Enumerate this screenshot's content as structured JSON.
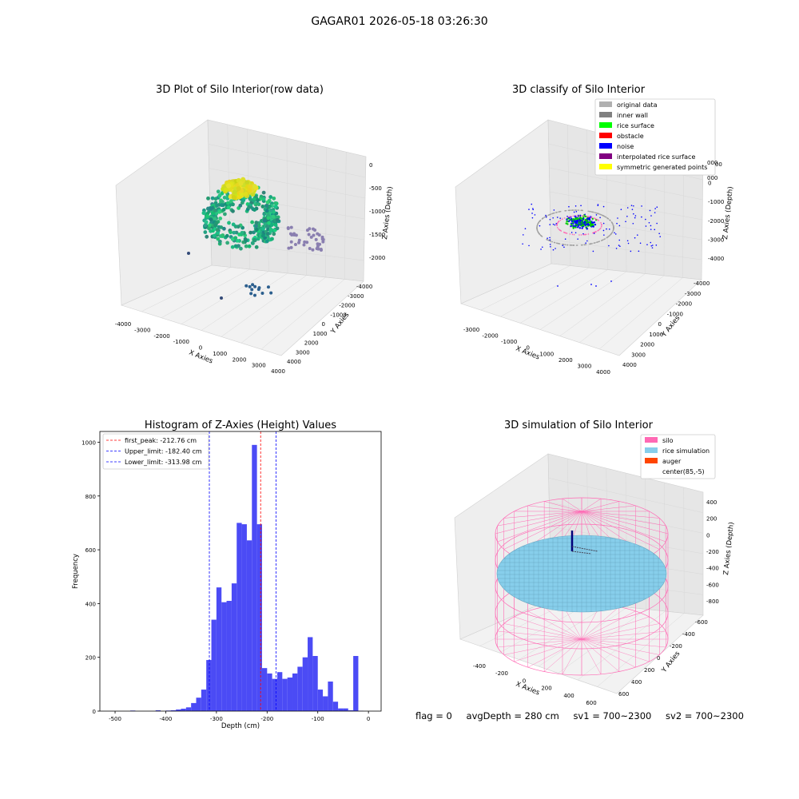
{
  "suptitle": "GAGAR01 2026-05-18 03:26:30",
  "colors": {
    "hist_bar": "#4b4bf5",
    "peak_line": "#ff0000",
    "limit_line": "#0000ff",
    "silo": "#ff69b4",
    "rice": "#87ceeb",
    "auger": "#ff4500"
  },
  "panel1": {
    "title": "3D Plot of Silo Interior(row data)",
    "xlabel": "X Axies",
    "ylabel": "Y Axies",
    "zlabel": "Z Axies (Depth)",
    "xticks": [
      "-4000",
      "-3000",
      "-2000",
      "-1000",
      "0",
      "1000",
      "2000",
      "3000",
      "4000"
    ],
    "yticks": [
      "4000",
      "3000",
      "2000",
      "1000",
      "0",
      "-1000",
      "-2000",
      "-3000",
      "-4000"
    ],
    "zticks": [
      "0",
      "-500",
      "-1000",
      "-1500",
      "-2000"
    ],
    "colormap": "viridis"
  },
  "panel2": {
    "title": "3D classify of Silo Interior",
    "xlabel": "X Axies",
    "ylabel": "Y Axies",
    "zlabel": "Z Axies (Depth)",
    "xticks": [
      "-3000",
      "-2000",
      "-1000",
      "0",
      "1000",
      "2000",
      "3000",
      "4000"
    ],
    "yticks": [
      "4000",
      "3000",
      "2000",
      "1000",
      "0",
      "-1000",
      "-2000",
      "-3000",
      "-4000"
    ],
    "zticks": [
      "1000",
      "0",
      "-1000",
      "-2000",
      "-3000",
      "-4000"
    ],
    "legend": [
      {
        "label": "original data",
        "color": "#b0b0b0"
      },
      {
        "label": "inner wall",
        "color": "#808080"
      },
      {
        "label": "rice surface",
        "color": "#00ff00"
      },
      {
        "label": "obstacle",
        "color": "#ff0000"
      },
      {
        "label": "noise",
        "color": "#0000ff"
      },
      {
        "label": "interpolated rice surface",
        "color": "#800080"
      },
      {
        "label": "symmetric generated points",
        "color": "#ffff00"
      }
    ],
    "legend_clipped_ticks": [
      "000",
      "000"
    ]
  },
  "panel4": {
    "title": "3D simulation of Silo Interior",
    "xlabel": "X Axies",
    "ylabel": "Y Axies",
    "zlabel": "Z Axies (Depth)",
    "xticks": [
      "-400",
      "-200",
      "0",
      "200",
      "400",
      "600"
    ],
    "yticks": [
      "600",
      "400",
      "200",
      "0",
      "-200",
      "-400",
      "-600"
    ],
    "zticks": [
      "400",
      "200",
      "0",
      "-200",
      "-400",
      "-600",
      "-800"
    ],
    "legend": [
      {
        "label": "silo",
        "color": "#ff69b4"
      },
      {
        "label": "rice simulation",
        "color": "#87ceeb"
      },
      {
        "label": "auger",
        "color": "#ff4500"
      },
      {
        "label": "center(85,-5)",
        "color": ""
      }
    ]
  },
  "footer": {
    "flag": "flag = 0",
    "avg": "avgDepth = 280 cm",
    "sv1": "sv1 = 700~2300",
    "sv2": "sv2 = 700~2300"
  },
  "chart_data": {
    "type": "bar",
    "title": "Histogram of Z-Axies (Height) Values",
    "xlabel": "Depth (cm)",
    "ylabel": "Frequency",
    "xlim": [
      -530,
      25
    ],
    "ylim": [
      0,
      1040
    ],
    "xticks": [
      -500,
      -400,
      -300,
      -200,
      -100,
      0
    ],
    "yticks": [
      0,
      200,
      400,
      600,
      800,
      1000
    ],
    "bin_width": 10,
    "bin_starts": [
      -470,
      -420,
      -400,
      -390,
      -380,
      -370,
      -360,
      -350,
      -340,
      -330,
      -320,
      -310,
      -300,
      -290,
      -280,
      -270,
      -260,
      -250,
      -240,
      -230,
      -220,
      -210,
      -200,
      -190,
      -180,
      -170,
      -160,
      -150,
      -140,
      -130,
      -120,
      -110,
      -100,
      -90,
      -80,
      -70,
      -60,
      -50,
      -40,
      -30,
      -20,
      -10
    ],
    "values": [
      2,
      3,
      2,
      3,
      6,
      9,
      14,
      30,
      50,
      80,
      190,
      340,
      460,
      405,
      410,
      475,
      700,
      695,
      635,
      990,
      695,
      160,
      140,
      120,
      145,
      120,
      125,
      140,
      165,
      200,
      275,
      205,
      80,
      55,
      110,
      35,
      10,
      10,
      3,
      205,
      1,
      0
    ],
    "vlines": [
      {
        "x": -212.76,
        "label": "first_peak: -212.76 cm",
        "color": "#ff0000"
      },
      {
        "x": -182.4,
        "label": "Upper_limit: -182.40 cm",
        "color": "#0000ff"
      },
      {
        "x": -313.98,
        "label": "Lower_limit: -313.98 cm",
        "color": "#0000ff"
      }
    ],
    "legend_position": "upper left"
  }
}
